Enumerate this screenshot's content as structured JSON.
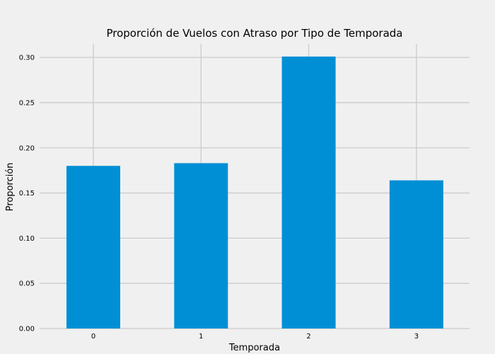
{
  "chart_data": {
    "type": "bar",
    "title": "Proporción de Vuelos con Atraso por Tipo de Temporada",
    "xlabel": "Temporada",
    "ylabel": "Proporción",
    "categories": [
      "0",
      "1",
      "2",
      "3"
    ],
    "values": [
      0.18,
      0.183,
      0.301,
      0.164
    ],
    "ylim": [
      0,
      0.315
    ],
    "yticks": [
      "0.00",
      "0.05",
      "0.10",
      "0.15",
      "0.20",
      "0.25",
      "0.30"
    ],
    "grid": true,
    "legend": "none",
    "colors": {
      "bar": "#008fd5",
      "background": "#f0f0f0",
      "grid": "#cbcbcb"
    }
  }
}
